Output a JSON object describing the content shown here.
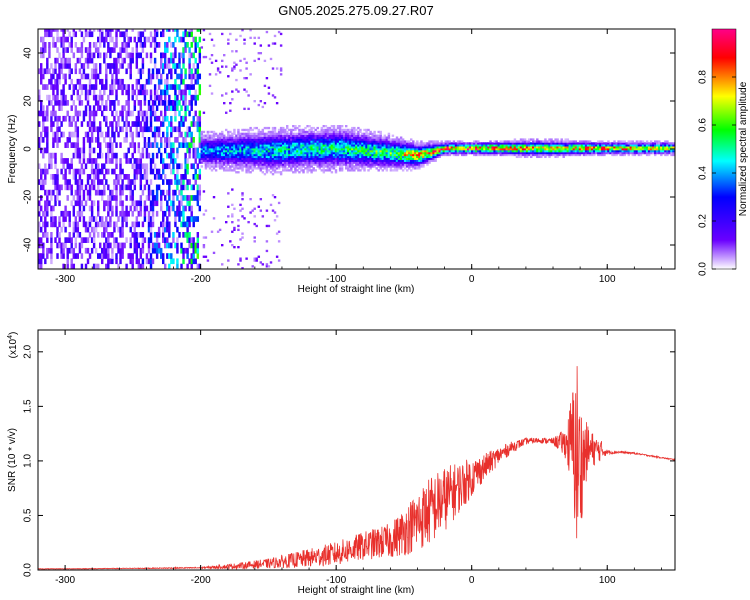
{
  "title": "GN05.2025.275.09.27.R07",
  "chart_data": [
    {
      "type": "heatmap",
      "title": "GN05.2025.275.09.27.R07",
      "xlabel": "Height of straight line (km)",
      "ylabel": "Frequency (Hz)",
      "xlim": [
        -320,
        150
      ],
      "ylim": [
        -50,
        50
      ],
      "xticks": [
        -300,
        -200,
        -100,
        0,
        100
      ],
      "xtick_labels": [
        "-300",
        "-200",
        "-100",
        "0",
        "100"
      ],
      "yticks": [
        -40,
        -20,
        0,
        20,
        40
      ],
      "ytick_labels": [
        "-40",
        "-20",
        "0",
        "20",
        "40"
      ],
      "colorbar": {
        "label": "Normalized spectral amplitude",
        "range": [
          0,
          1
        ],
        "ticks": [
          0.0,
          0.2,
          0.4,
          0.6,
          0.8
        ],
        "tick_labels": [
          "0.0",
          "0.2",
          "0.4",
          "0.6",
          "0.8"
        ],
        "colormap": [
          "#ffffff",
          "#6a00ff",
          "#0000ff",
          "#00ffff",
          "#00ff00",
          "#ffff00",
          "#ff0000",
          "#ff00aa"
        ]
      },
      "band_profile": {
        "x": [
          -320,
          -250,
          -200,
          -150,
          -100,
          -60,
          -40,
          -20,
          0,
          50,
          100,
          150
        ],
        "center_hz": [
          0,
          0,
          -1,
          -1,
          0,
          -2,
          -3,
          0,
          0,
          0,
          0,
          0
        ],
        "halfwidth_hz": [
          50,
          50,
          8,
          10,
          10,
          8,
          6,
          3,
          3,
          4,
          3,
          3
        ],
        "peak_amplitude": [
          0.1,
          0.12,
          0.35,
          0.45,
          0.5,
          0.55,
          0.8,
          0.85,
          0.9,
          0.75,
          0.8,
          0.7
        ]
      }
    },
    {
      "type": "line",
      "xlabel": "Height of straight line (km)",
      "ylabel": "SNR (10 * v/v)",
      "yscale_label": "(x10",
      "yscale_exp": "4",
      "xlim": [
        -320,
        150
      ],
      "ylim": [
        0,
        22000
      ],
      "xticks": [
        -300,
        -200,
        -100,
        0,
        100
      ],
      "xtick_labels": [
        "-300",
        "-200",
        "-100",
        "0",
        "100"
      ],
      "yticks": [
        0,
        5000,
        10000,
        15000,
        20000
      ],
      "ytick_labels": [
        "0.0",
        "0.5",
        "1.0",
        "1.5",
        "2.0"
      ],
      "color": "#e8302c",
      "series": [
        {
          "x": [
            -320,
            -280,
            -250,
            -200,
            -175,
            -150,
            -125,
            -100,
            -80,
            -60,
            -50,
            -40,
            -30,
            -20,
            -10,
            0,
            10,
            20,
            30,
            40,
            50,
            60,
            70,
            75,
            78,
            80,
            85,
            90,
            95,
            100,
            110,
            120,
            130,
            140,
            150
          ],
          "y": [
            100,
            120,
            150,
            200,
            350,
            600,
            1000,
            1500,
            2200,
            2700,
            3500,
            4500,
            5500,
            6500,
            7500,
            8500,
            9500,
            10500,
            11300,
            11800,
            11900,
            11800,
            11600,
            11500,
            10000,
            9500,
            11000,
            11000,
            11000,
            10800,
            10800,
            10700,
            10500,
            10300,
            10100
          ],
          "noise_amplitude": [
            20,
            25,
            30,
            60,
            250,
            450,
            800,
            1100,
            1300,
            1600,
            2200,
            2800,
            3200,
            3000,
            2400,
            1800,
            1200,
            800,
            500,
            300,
            250,
            300,
            1500,
            6000,
            10000,
            6000,
            2500,
            1500,
            1000,
            200,
            100,
            80,
            60,
            60,
            60
          ]
        }
      ]
    }
  ]
}
